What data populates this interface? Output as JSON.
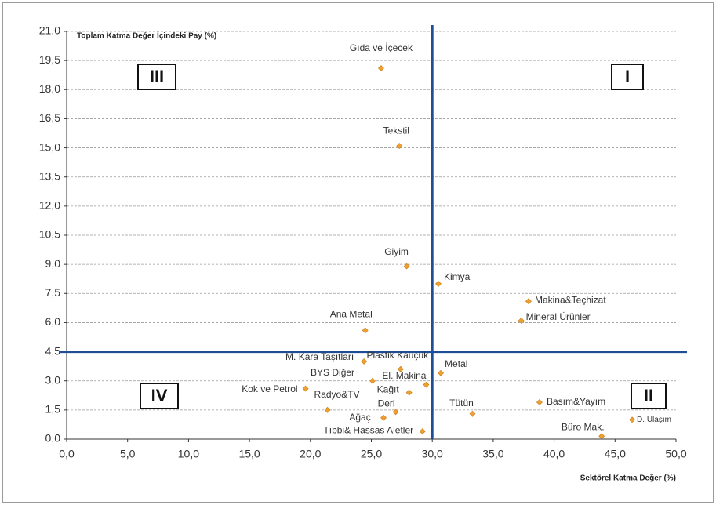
{
  "chart_data": {
    "type": "scatter",
    "y_axis_title": "Toplam Katma Değer İçindeki Pay (%)",
    "x_axis_title": "Sektörel Katma Değer (%)",
    "color": "#f0a030",
    "divider_color": "#1f4e96",
    "grid": true,
    "xlim": [
      0,
      50
    ],
    "ylim": [
      0,
      21
    ],
    "xticks": [
      {
        "value": 0,
        "label": "0,0"
      },
      {
        "value": 5,
        "label": "5,0"
      },
      {
        "value": 10,
        "label": "10,0"
      },
      {
        "value": 15,
        "label": "15,0"
      },
      {
        "value": 20,
        "label": "20,0"
      },
      {
        "value": 25,
        "label": "25,0"
      },
      {
        "value": 30,
        "label": "30,0"
      },
      {
        "value": 35,
        "label": "35,0"
      },
      {
        "value": 40,
        "label": "40,0"
      },
      {
        "value": 45,
        "label": "45,0"
      },
      {
        "value": 50,
        "label": "50,0"
      }
    ],
    "yticks": [
      {
        "value": 0,
        "label": "0,0"
      },
      {
        "value": 1.5,
        "label": "1,5"
      },
      {
        "value": 3,
        "label": "3,0"
      },
      {
        "value": 4.5,
        "label": "4,5"
      },
      {
        "value": 6,
        "label": "6,0"
      },
      {
        "value": 7.5,
        "label": "7,5"
      },
      {
        "value": 9,
        "label": "9,0"
      },
      {
        "value": 10.5,
        "label": "10,5"
      },
      {
        "value": 12,
        "label": "12,0"
      },
      {
        "value": 13.5,
        "label": "13,5"
      },
      {
        "value": 15,
        "label": "15,0"
      },
      {
        "value": 16.5,
        "label": "16,5"
      },
      {
        "value": 18,
        "label": "18,0"
      },
      {
        "value": 19.5,
        "label": "19,5"
      },
      {
        "value": 21,
        "label": "21,0"
      }
    ],
    "divider_x": 30,
    "divider_y": 4.5,
    "quadrants": [
      "I",
      "II",
      "III",
      "IV"
    ],
    "labels": [
      "Gıda ve İçecek",
      "Tekstil",
      "Giyim",
      "Kimya",
      "Makina&Teçhizat",
      "Mineral Ürünler",
      "Ana Metal",
      "M. Kara Taşıtları",
      "Plastik Kauçuk",
      "Metal",
      "BYS Diğer",
      "El. Makina",
      "Kağıt",
      "Kok ve Petrol",
      "Radyo&TV",
      "Deri",
      "Ağaç",
      "Tütün",
      "Basım&Yayım",
      "D. Ulaşım",
      "Büro Mak.",
      "Tıbbi& Hassas Aletler"
    ],
    "x": [
      25.8,
      27.3,
      27.9,
      30.5,
      37.9,
      37.3,
      24.5,
      24.4,
      27.4,
      30.7,
      25.1,
      29.5,
      28.1,
      19.6,
      21.4,
      27.0,
      26.0,
      33.3,
      38.8,
      46.4,
      43.9,
      29.2
    ],
    "values": [
      19.1,
      15.1,
      8.9,
      8.0,
      7.1,
      6.1,
      5.6,
      4.0,
      3.6,
      3.4,
      3.0,
      2.8,
      2.4,
      2.6,
      1.5,
      1.4,
      1.1,
      1.3,
      1.9,
      1.0,
      0.15,
      0.4
    ]
  }
}
